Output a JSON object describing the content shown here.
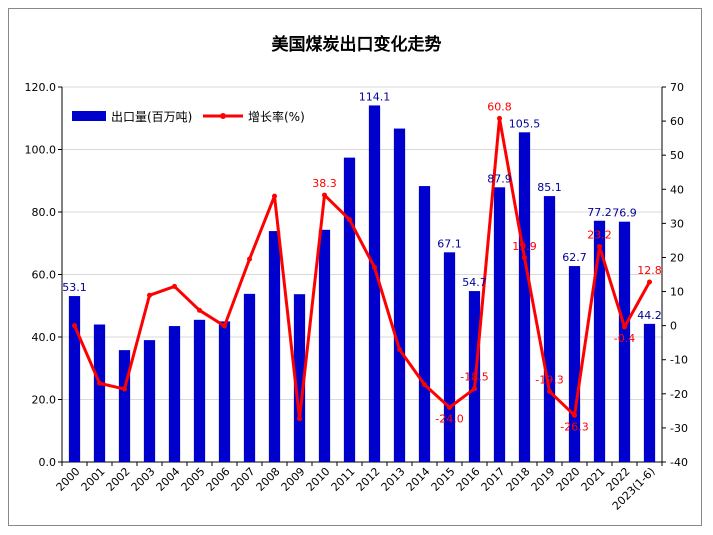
{
  "chart_data": {
    "type": "bar",
    "title": "美国煤炭出口变化走势",
    "categories": [
      "2000",
      "2001",
      "2002",
      "2003",
      "2004",
      "2005",
      "2006",
      "2007",
      "2008",
      "2009",
      "2010",
      "2011",
      "2012",
      "2013",
      "2014",
      "2015",
      "2016",
      "2017",
      "2018",
      "2019",
      "2020",
      "2021",
      "2022",
      "2023(1-6)"
    ],
    "series": [
      {
        "name": "出口量(百万吨)",
        "type": "bar",
        "axis": "left",
        "color": "#0000CC",
        "values": [
          53.1,
          44.0,
          35.8,
          39.0,
          43.5,
          45.5,
          45.0,
          53.8,
          73.9,
          53.7,
          74.3,
          97.4,
          114.1,
          106.7,
          88.3,
          67.1,
          54.7,
          87.9,
          105.5,
          85.1,
          62.7,
          77.2,
          76.9,
          44.2
        ]
      },
      {
        "name": "增长率(%)",
        "type": "line",
        "axis": "right",
        "color": "#FF0000",
        "values": [
          0,
          -16.9,
          -18.6,
          8.9,
          11.5,
          4.5,
          -0.1,
          19.5,
          38.0,
          -27.3,
          38.3,
          31.1,
          17.1,
          -7.0,
          -17.3,
          -24.0,
          -18.5,
          60.8,
          19.9,
          -19.3,
          -26.3,
          23.2,
          -0.4,
          12.8
        ]
      }
    ],
    "bar_labels": [
      "53.1",
      "",
      "",
      "",
      "",
      "",
      "",
      "",
      "",
      "",
      "",
      "",
      "114.1",
      "",
      "",
      "67.1",
      "54.7",
      "87.9",
      "105.5",
      "85.1",
      "62.7",
      "77.2",
      "76.9",
      "44.2"
    ],
    "line_labels": [
      "",
      "",
      "",
      "",
      "",
      "",
      "",
      "",
      "",
      "",
      "38.3",
      "",
      "",
      "",
      "",
      "-24.0",
      "-18.5",
      "60.8",
      "19.9",
      "-19.3",
      "-26.3",
      "23.2",
      "-0.4",
      "12.8"
    ],
    "y_left": {
      "min": 0,
      "max": 120,
      "step": 20,
      "ticks": [
        "0.0",
        "20.0",
        "40.0",
        "60.0",
        "80.0",
        "100.0",
        "120.0"
      ]
    },
    "y_right": {
      "min": -40,
      "max": 70,
      "step": 10,
      "ticks": [
        "-40",
        "-30",
        "-20",
        "-10",
        "0",
        "10",
        "20",
        "30",
        "40",
        "50",
        "60",
        "70"
      ]
    },
    "legend_placement": "top-left",
    "grid": "horizontal",
    "grid_color": "#D9D9D9"
  }
}
